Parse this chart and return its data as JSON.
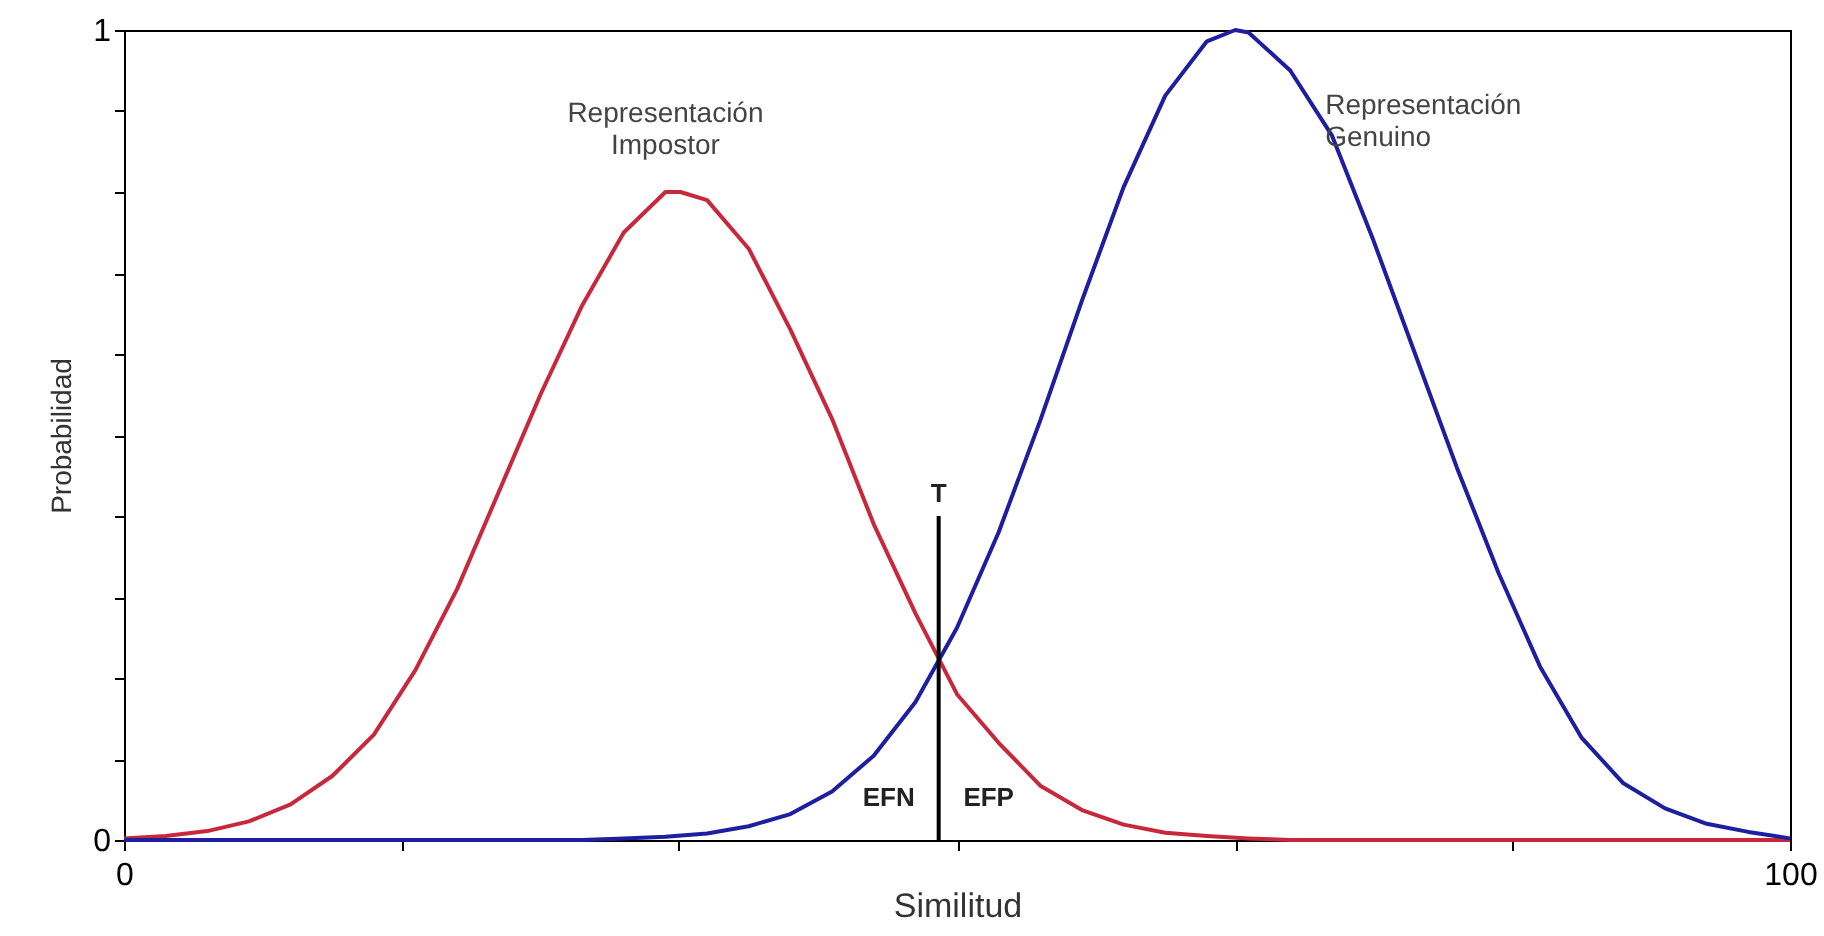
{
  "chart_data": {
    "type": "line",
    "xlabel": "Similitud",
    "ylabel": "Probabilidad",
    "xlim": [
      0,
      100
    ],
    "ylim": [
      0,
      1
    ],
    "xticks": [
      0,
      {
        "value": 16.7,
        "label": null
      },
      {
        "value": 33.3,
        "label": null
      },
      {
        "value": 50,
        "label": null
      },
      {
        "value": 66.7,
        "label": null
      },
      {
        "value": 83.3,
        "label": null
      },
      100
    ],
    "yticks": [
      0,
      {
        "value": 0.1,
        "label": null
      },
      {
        "value": 0.2,
        "label": null
      },
      {
        "value": 0.3,
        "label": null
      },
      {
        "value": 0.4,
        "label": null
      },
      {
        "value": 0.5,
        "label": null
      },
      {
        "value": 0.6,
        "label": null
      },
      {
        "value": 0.7,
        "label": null
      },
      {
        "value": 0.8,
        "label": null
      },
      {
        "value": 0.9,
        "label": null
      },
      1
    ],
    "grid": false,
    "series": [
      {
        "name": "Representación Impostor",
        "color": "#c8283c",
        "x": [
          0,
          2.5,
          5,
          7.5,
          10,
          12.5,
          15,
          17.5,
          20,
          22.5,
          25,
          27.5,
          30,
          32.5,
          33.4,
          35,
          37.5,
          40,
          42.5,
          45,
          47.5,
          50,
          52.5,
          55,
          57.5,
          60,
          62.5,
          65,
          67.5,
          70,
          75,
          80,
          85,
          90,
          95,
          100
        ],
        "values": [
          0.002,
          0.005,
          0.011,
          0.023,
          0.044,
          0.079,
          0.13,
          0.21,
          0.31,
          0.43,
          0.55,
          0.66,
          0.75,
          0.8,
          0.8,
          0.79,
          0.73,
          0.63,
          0.52,
          0.39,
          0.28,
          0.18,
          0.12,
          0.067,
          0.037,
          0.019,
          0.009,
          0.005,
          0.002,
          0,
          0,
          0,
          0,
          0,
          0,
          0
        ]
      },
      {
        "name": "Representación Genuino",
        "color": "#1e1ea0",
        "x": [
          0,
          5,
          10,
          15,
          20,
          25,
          27.5,
          30,
          32.5,
          35,
          37.5,
          40,
          42.5,
          45,
          47.5,
          50,
          52.5,
          55,
          57.5,
          60,
          62.5,
          65,
          66.7,
          67.5,
          70,
          72.5,
          75,
          77.5,
          80,
          82.5,
          85,
          87.5,
          90,
          92.5,
          95,
          97.5,
          100
        ],
        "values": [
          0,
          0,
          0,
          0,
          0,
          0,
          0,
          0.002,
          0.004,
          0.008,
          0.017,
          0.032,
          0.06,
          0.104,
          0.17,
          0.262,
          0.38,
          0.518,
          0.666,
          0.806,
          0.919,
          0.986,
          1,
          0.997,
          0.95,
          0.87,
          0.74,
          0.6,
          0.46,
          0.33,
          0.214,
          0.126,
          0.07,
          0.039,
          0.02,
          0.01,
          0.002
        ]
      },
      {
        "color": "#000000",
        "x": [
          48.9,
          48.9
        ],
        "values": [
          0,
          0.4
        ]
      }
    ],
    "annotations": [
      {
        "text": "T",
        "x": 48.9,
        "y": 0.41
      },
      "EFN",
      "EFP"
    ]
  }
}
